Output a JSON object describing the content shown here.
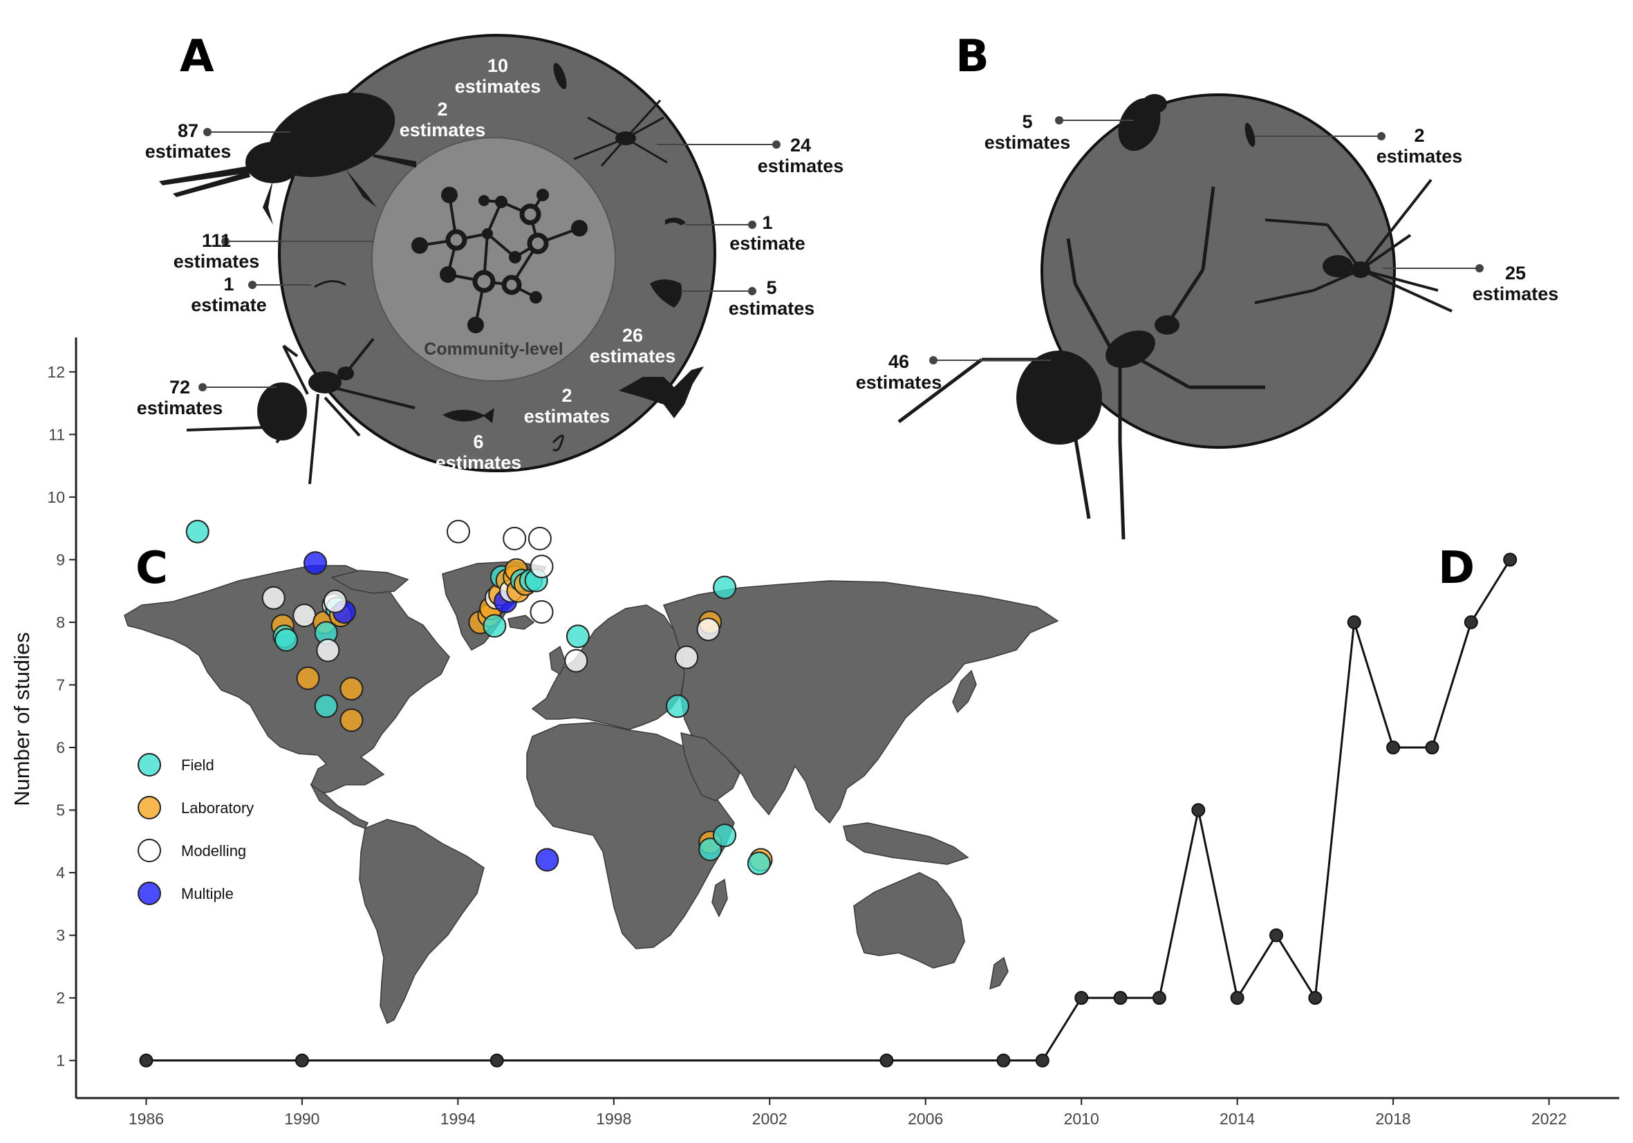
{
  "panels": {
    "a": "A",
    "b": "B",
    "c": "C",
    "d": "D"
  },
  "panel_a": {
    "center_label": "Community-level",
    "annotations": [
      {
        "n": "87",
        "unit": "estimates",
        "color": "#111"
      },
      {
        "n": "111",
        "unit": "estimates",
        "color": "#111"
      },
      {
        "n": "1",
        "unit": "estimate",
        "color": "#111"
      },
      {
        "n": "72",
        "unit": "estimates",
        "color": "#111"
      },
      {
        "n": "10",
        "unit": "estimates",
        "color": "#ffffff"
      },
      {
        "n": "2",
        "unit": "estimates",
        "color": "#ffffff"
      },
      {
        "n": "24",
        "unit": "estimates",
        "color": "#111"
      },
      {
        "n": "1",
        "unit": "estimate",
        "color": "#111"
      },
      {
        "n": "5",
        "unit": "estimates",
        "color": "#111"
      },
      {
        "n": "26",
        "unit": "estimates",
        "color": "#ffffff"
      },
      {
        "n": "2",
        "unit": "estimates",
        "color": "#ffffff"
      },
      {
        "n": "6",
        "unit": "estimates",
        "color": "#ffffff"
      }
    ]
  },
  "panel_b": {
    "annotations": [
      {
        "n": "5",
        "unit": "estimates"
      },
      {
        "n": "2",
        "unit": "estimates"
      },
      {
        "n": "25",
        "unit": "estimates"
      },
      {
        "n": "46",
        "unit": "estimates"
      }
    ]
  },
  "legend": [
    {
      "label": "Field",
      "color": "#40E0D0"
    },
    {
      "label": "Laboratory",
      "color": "#F5A623"
    },
    {
      "label": "Modelling",
      "color": "#FFFFFF"
    },
    {
      "label": "Multiple",
      "color": "#1F1FFF"
    }
  ],
  "map_points": [
    {
      "lon": -165,
      "lat": 64,
      "type": "Field"
    },
    {
      "lon": -100,
      "lat": 55,
      "type": "Multiple"
    },
    {
      "lon": -123,
      "lat": 45,
      "type": "Modelling"
    },
    {
      "lon": -118,
      "lat": 37,
      "type": "Laboratory"
    },
    {
      "lon": -117,
      "lat": 34,
      "type": "Field"
    },
    {
      "lon": -116,
      "lat": 33,
      "type": "Field"
    },
    {
      "lon": -106,
      "lat": 40,
      "type": "Modelling"
    },
    {
      "lon": -95,
      "lat": 38,
      "type": "Laboratory"
    },
    {
      "lon": -94,
      "lat": 35,
      "type": "Field"
    },
    {
      "lon": -90,
      "lat": 43,
      "type": "Modelling"
    },
    {
      "lon": -88,
      "lat": 42,
      "type": "Field"
    },
    {
      "lon": -86,
      "lat": 40,
      "type": "Laboratory"
    },
    {
      "lon": -84,
      "lat": 41,
      "type": "Multiple"
    },
    {
      "lon": -89,
      "lat": 44,
      "type": "Modelling"
    },
    {
      "lon": -93,
      "lat": 30,
      "type": "Modelling"
    },
    {
      "lon": -104,
      "lat": 22,
      "type": "Laboratory"
    },
    {
      "lon": -80,
      "lat": 19,
      "type": "Laboratory"
    },
    {
      "lon": -94,
      "lat": 14,
      "type": "Field"
    },
    {
      "lon": -80,
      "lat": 10,
      "type": "Laboratory"
    },
    {
      "lon": -21,
      "lat": 64,
      "type": "Modelling"
    },
    {
      "lon": -9,
      "lat": 38,
      "type": "Laboratory"
    },
    {
      "lon": -4,
      "lat": 40,
      "type": "Laboratory"
    },
    {
      "lon": -3,
      "lat": 42,
      "type": "Laboratory"
    },
    {
      "lon": -1,
      "lat": 37,
      "type": "Field"
    },
    {
      "lon": 0,
      "lat": 45,
      "type": "Modelling"
    },
    {
      "lon": 2,
      "lat": 46,
      "type": "Laboratory"
    },
    {
      "lon": 3,
      "lat": 51,
      "type": "Field"
    },
    {
      "lon": 5,
      "lat": 44,
      "type": "Multiple"
    },
    {
      "lon": 6,
      "lat": 50,
      "type": "Laboratory"
    },
    {
      "lon": 8,
      "lat": 47,
      "type": "Modelling"
    },
    {
      "lon": 10,
      "lat": 51,
      "type": "Laboratory"
    },
    {
      "lon": 11,
      "lat": 53,
      "type": "Laboratory"
    },
    {
      "lon": 12,
      "lat": 47,
      "type": "Laboratory"
    },
    {
      "lon": 14,
      "lat": 50,
      "type": "Field"
    },
    {
      "lon": 16,
      "lat": 49,
      "type": "Laboratory"
    },
    {
      "lon": 19,
      "lat": 50,
      "type": "Field"
    },
    {
      "lon": 22,
      "lat": 50,
      "type": "Field"
    },
    {
      "lon": 10,
      "lat": 62,
      "type": "Modelling"
    },
    {
      "lon": 24,
      "lat": 62,
      "type": "Modelling"
    },
    {
      "lon": 25,
      "lat": 54,
      "type": "Modelling"
    },
    {
      "lon": 25,
      "lat": 41,
      "type": "Modelling"
    },
    {
      "lon": 45,
      "lat": 34,
      "type": "Field"
    },
    {
      "lon": 44,
      "lat": 27,
      "type": "Modelling"
    },
    {
      "lon": 126,
      "lat": 48,
      "type": "Field"
    },
    {
      "lon": 118,
      "lat": 38,
      "type": "Laboratory"
    },
    {
      "lon": 117,
      "lat": 36,
      "type": "Modelling"
    },
    {
      "lon": 105,
      "lat": 28,
      "type": "Modelling"
    },
    {
      "lon": 100,
      "lat": 14,
      "type": "Field"
    },
    {
      "lon": 28,
      "lat": -30,
      "type": "Multiple"
    },
    {
      "lon": 118,
      "lat": -25,
      "type": "Laboratory"
    },
    {
      "lon": 118,
      "lat": -27,
      "type": "Field"
    },
    {
      "lon": 126,
      "lat": -23,
      "type": "Field"
    },
    {
      "lon": 146,
      "lat": -30,
      "type": "Laboratory"
    },
    {
      "lon": 145,
      "lat": -31,
      "type": "Field"
    }
  ],
  "chart_data": {
    "type": "line",
    "ylabel": "Number of studies",
    "xlabel": "",
    "x": [
      1986,
      1990,
      1995,
      2005,
      2008,
      2009,
      2010,
      2011,
      2012,
      2013,
      2014,
      2015,
      2016,
      2017,
      2018,
      2019,
      2020,
      2021
    ],
    "y": [
      1,
      1,
      1,
      1,
      1,
      1,
      2,
      2,
      2,
      5,
      2,
      3,
      2,
      8,
      6,
      6,
      8,
      9
    ],
    "xlim": [
      1984.2,
      2023.8
    ],
    "ylim": [
      0.4,
      12.55
    ],
    "xticks": [
      1986,
      1990,
      1994,
      1998,
      2002,
      2006,
      2010,
      2014,
      2018,
      2022
    ],
    "yticks": [
      1,
      2,
      3,
      4,
      5,
      6,
      7,
      8,
      9,
      10,
      11,
      12
    ],
    "grid": false,
    "color": "#111111"
  }
}
